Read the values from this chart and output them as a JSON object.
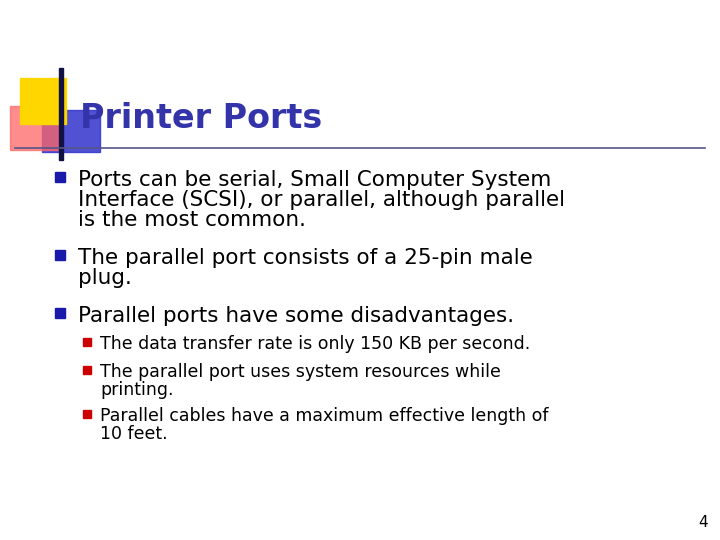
{
  "title": "Printer Ports",
  "title_color": "#3333AA",
  "background_color": "#FFFFFF",
  "slide_number": "4",
  "bullet_color": "#1a1aaa",
  "sub_bullet_color": "#CC0000",
  "bullet1_line1": "Ports can be serial, Small Computer System",
  "bullet1_line2": "Interface (SCSI), or parallel, although parallel",
  "bullet1_line3": "is the most common.",
  "bullet2_line1": "The parallel port consists of a 25-pin male",
  "bullet2_line2": "plug.",
  "bullet3_line1": "Parallel ports have some disadvantages.",
  "sub1": "The data transfer rate is only 150 KB per second.",
  "sub2_line1": "The parallel port uses system resources while",
  "sub2_line2": "printing.",
  "sub3_line1": "Parallel cables have a maximum effective length of",
  "sub3_line2": "10 feet.",
  "decoration_yellow": "#FFD700",
  "decoration_red": "#FF6666",
  "decoration_blue": "#3333CC",
  "line_color": "#555588"
}
